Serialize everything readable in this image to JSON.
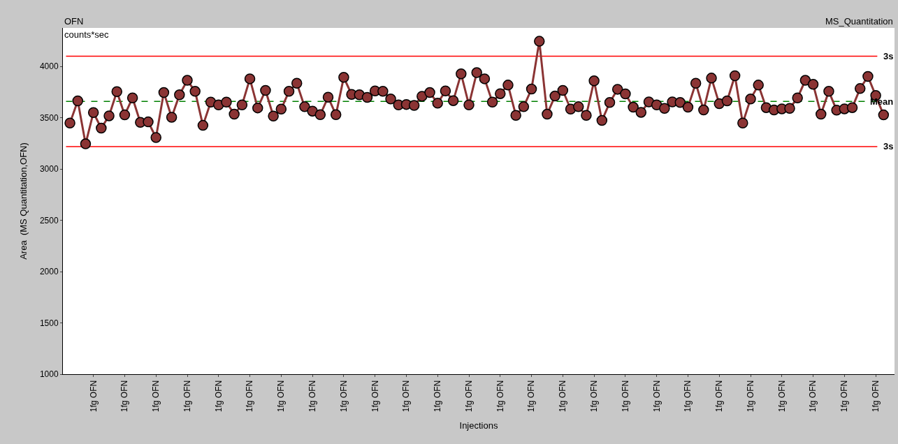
{
  "chart_data": {
    "type": "line",
    "title": "OFN",
    "subtitle": "MS_Quantitation",
    "xlabel": "Injections",
    "ylabel": "Area  (MS Quantitation,OFN)",
    "annotations": [
      "counts*sec"
    ],
    "categories": [
      null,
      null,
      null,
      "1fg OFN",
      null,
      null,
      null,
      "1fg OFN",
      null,
      null,
      null,
      "1fg OFN",
      null,
      null,
      null,
      "1fg OFN",
      null,
      null,
      null,
      "1fg OFN",
      null,
      null,
      null,
      "1fg OFN",
      null,
      null,
      null,
      "1fg OFN",
      null,
      null,
      null,
      "1fg OFN",
      null,
      null,
      null,
      "1fg OFN",
      null,
      null,
      null,
      "1fg OFN",
      null,
      null,
      null,
      "1fg OFN",
      null,
      null,
      null,
      "1fg OFN",
      null,
      null,
      null,
      "1fg OFN",
      null,
      null,
      null,
      "1fg OFN",
      null,
      null,
      null,
      "1fg OFN",
      null,
      null,
      null,
      "1fg OFN",
      null,
      null,
      null,
      "1fg OFN",
      null,
      null,
      null,
      "1fg OFN",
      null,
      null,
      null,
      "1fg OFN",
      null,
      null,
      null,
      "1fg OFN",
      null,
      null,
      null,
      "1fg OFN",
      null,
      null,
      null,
      "1fg OFN",
      null,
      null,
      null,
      "1fg OFN",
      null,
      null,
      null,
      "1fg OFN",
      null,
      null,
      null,
      "1fg OFN",
      null,
      null,
      null,
      "1fg OFN",
      null
    ],
    "series": [
      {
        "color": "#8b3434",
        "values": [
          3448,
          3664,
          3245,
          3550,
          3398,
          3518,
          3754,
          3527,
          3693,
          3454,
          3459,
          3307,
          3745,
          3504,
          3723,
          3864,
          3757,
          3425,
          3652,
          3625,
          3652,
          3534,
          3625,
          3879,
          3595,
          3766,
          3516,
          3584,
          3757,
          3836,
          3607,
          3564,
          3529,
          3700,
          3529,
          3893,
          3727,
          3723,
          3698,
          3761,
          3757,
          3682,
          3625,
          3629,
          3620,
          3709,
          3745,
          3641,
          3761,
          3666,
          3927,
          3625,
          3939,
          3879,
          3652,
          3734,
          3818,
          3523,
          3607,
          3779,
          4245,
          3534,
          3711,
          3766,
          3584,
          3607,
          3523,
          3859,
          3473,
          3648,
          3777,
          3732,
          3602,
          3552,
          3654,
          3625,
          3591,
          3654,
          3648,
          3602,
          3836,
          3575,
          3886,
          3636,
          3664,
          3909,
          3448,
          3682,
          3818,
          3598,
          3575,
          3586,
          3591,
          3693,
          3864,
          3825,
          3534,
          3757,
          3573,
          3586,
          3598,
          3784,
          3902,
          3716,
          3527
        ]
      }
    ],
    "ylim": [
      1000,
      4375
    ],
    "yticks": [
      1000,
      1500,
      2000,
      2500,
      3000,
      3500,
      4000
    ],
    "ref_lines": [
      {
        "axis": "y",
        "value": 4099,
        "label": "3s",
        "color": "#ff0000",
        "line_style": "solid"
      },
      {
        "axis": "y",
        "value": 3659,
        "label": "Mean",
        "color": "#008000",
        "line_style": "dashed"
      },
      {
        "axis": "y",
        "value": 3219,
        "label": "3s",
        "color": "#ff0000",
        "line_style": "solid"
      }
    ],
    "grid": false,
    "marker": "circle",
    "line_style": "solid"
  }
}
